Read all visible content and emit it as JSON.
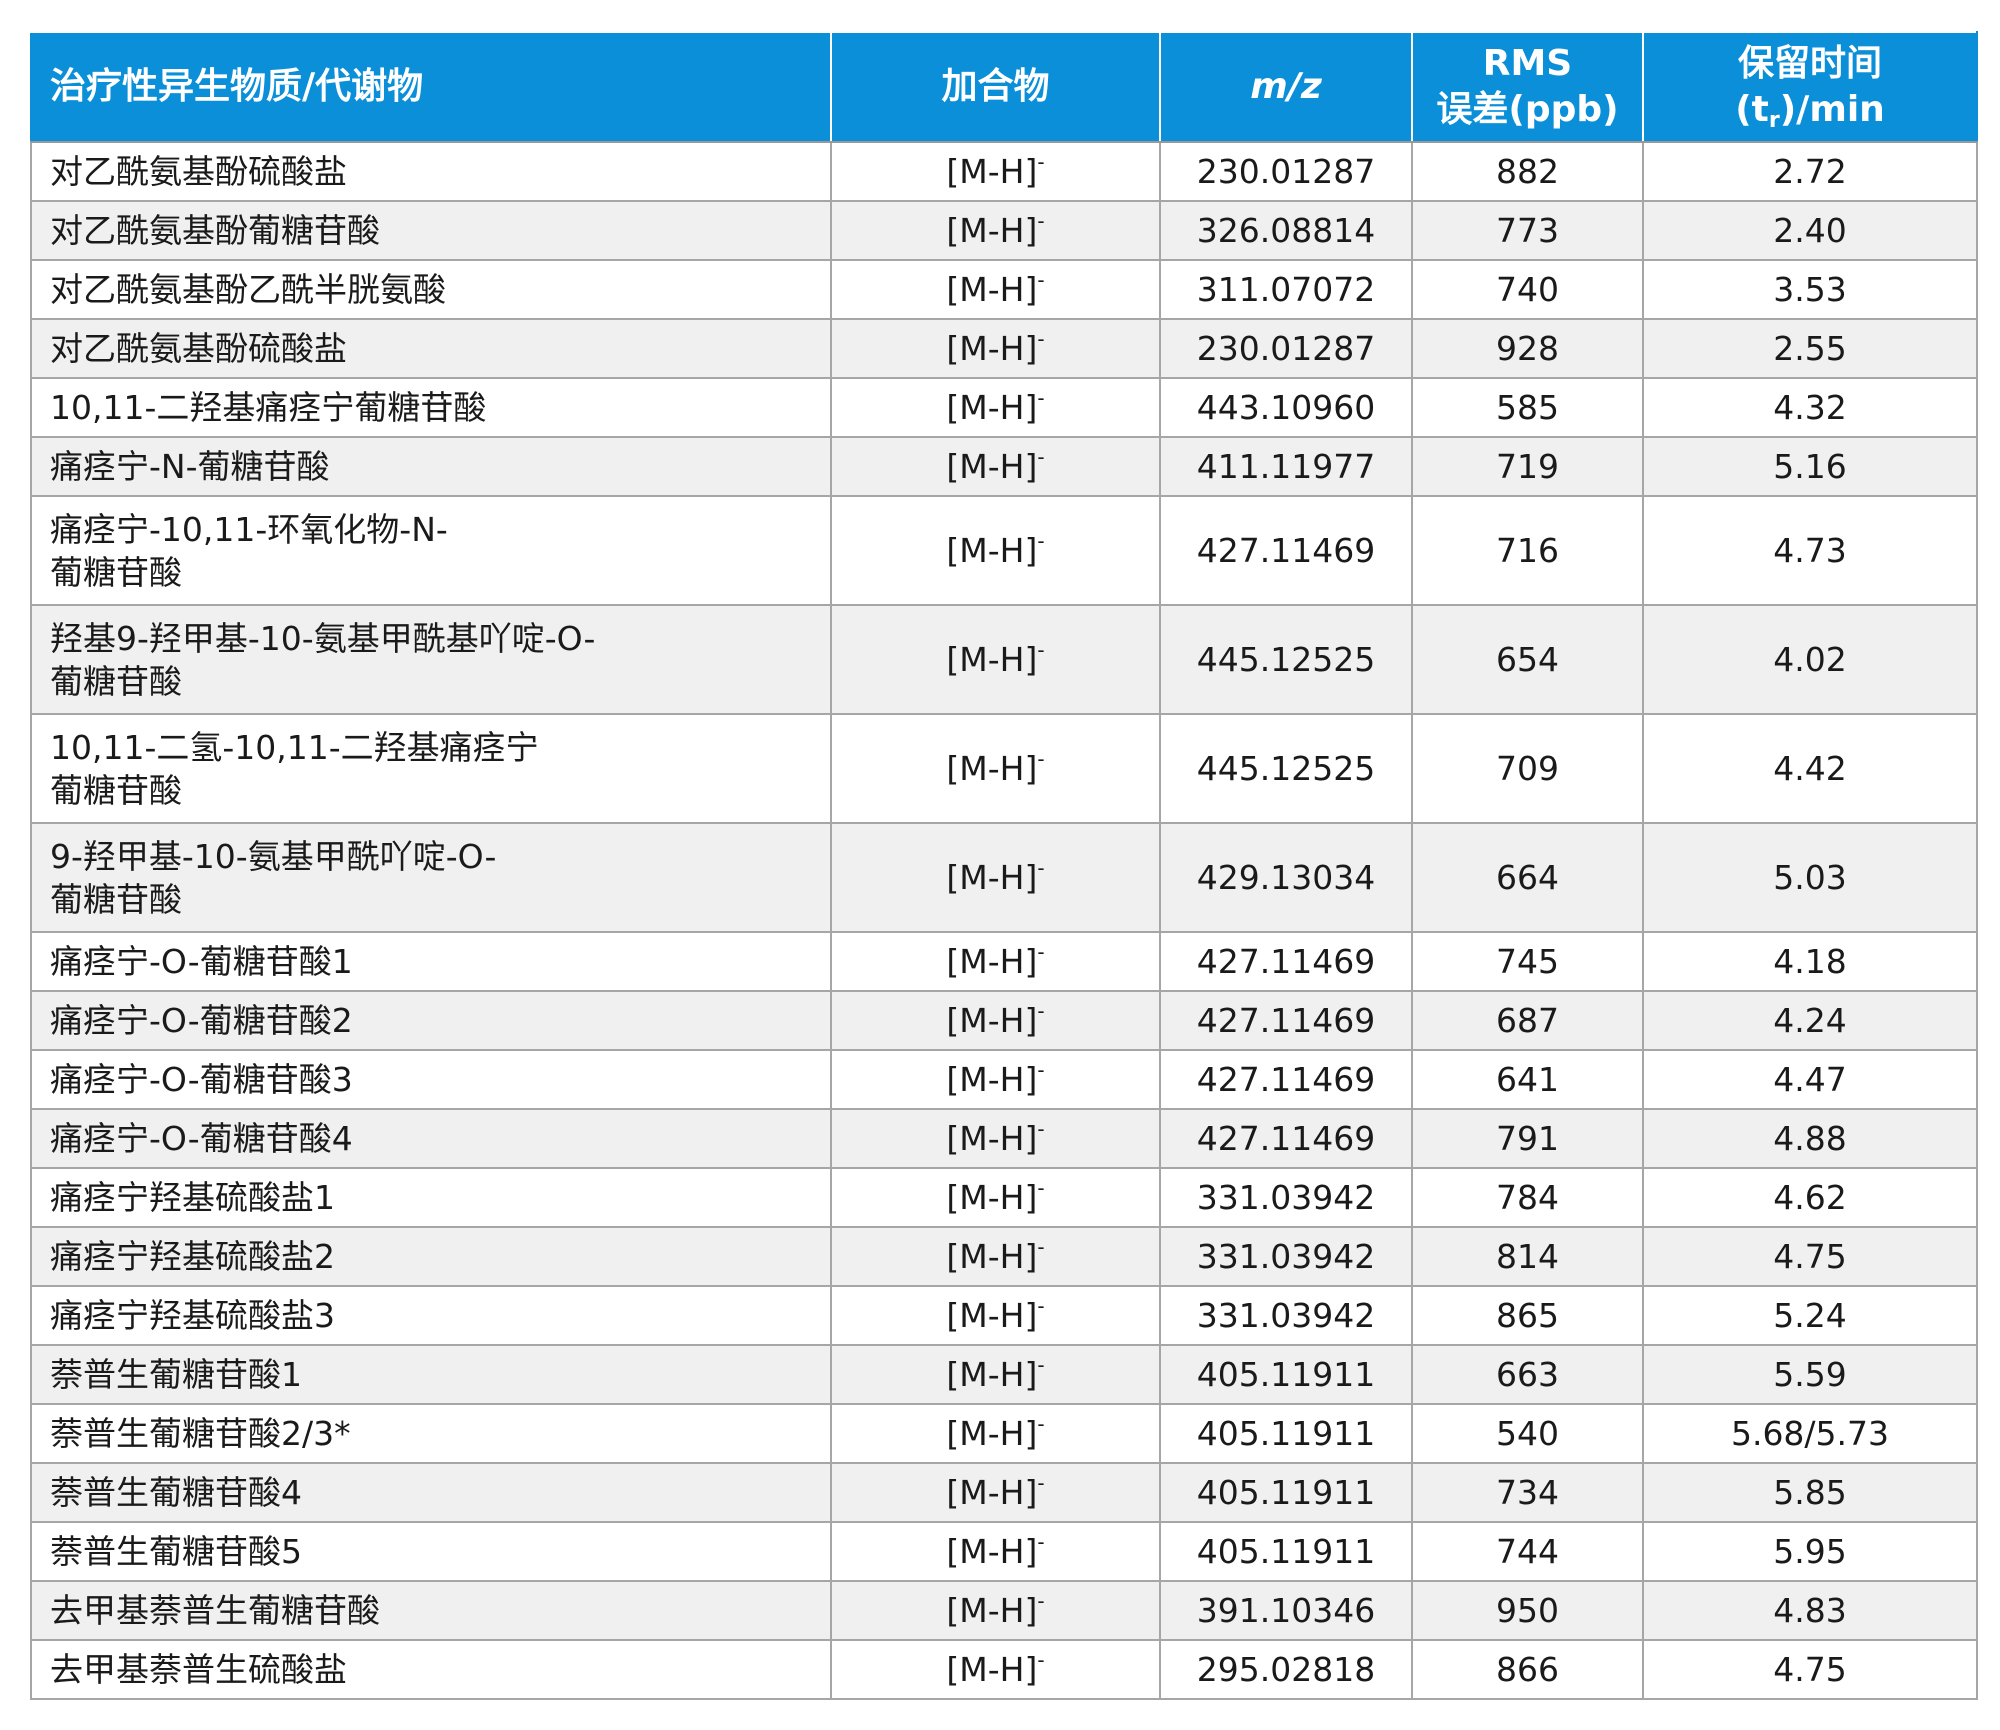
{
  "headers": {
    "compound": "治疗性异生物质/代谢物",
    "adduct": "加合物",
    "mz_m": "m",
    "mz_slash": "/",
    "mz_z": "z",
    "rms_line1": "RMS",
    "rms_line2": "误差(ppb)",
    "rt_line1": "保留时间",
    "rt_open": "(t",
    "rt_sub": "r",
    "rt_close": ")/min"
  },
  "adduct_base": "[M-H]",
  "adduct_sup": "-",
  "rows": [
    {
      "name": [
        "对乙酰氨基酚硫酸盐"
      ],
      "mz": "230.01287",
      "rms": "882",
      "rt": "2.72"
    },
    {
      "name": [
        "对乙酰氨基酚葡糖苷酸"
      ],
      "mz": "326.08814",
      "rms": "773",
      "rt": "2.40"
    },
    {
      "name": [
        "对乙酰氨基酚乙酰半胱氨酸"
      ],
      "mz": "311.07072",
      "rms": "740",
      "rt": "3.53"
    },
    {
      "name": [
        "对乙酰氨基酚硫酸盐"
      ],
      "mz": "230.01287",
      "rms": "928",
      "rt": "2.55"
    },
    {
      "name": [
        "10,11-二羟基痛痉宁葡糖苷酸"
      ],
      "mz": "443.10960",
      "rms": "585",
      "rt": "4.32"
    },
    {
      "name": [
        "痛痉宁-N-葡糖苷酸"
      ],
      "mz": "411.11977",
      "rms": "719",
      "rt": "5.16"
    },
    {
      "name": [
        "痛痉宁-10,11-环氧化物-N-",
        "葡糖苷酸"
      ],
      "mz": "427.11469",
      "rms": "716",
      "rt": "4.73"
    },
    {
      "name": [
        "羟基9-羟甲基-10-氨基甲酰基吖啶-O-",
        "葡糖苷酸"
      ],
      "mz": "445.12525",
      "rms": "654",
      "rt": "4.02"
    },
    {
      "name": [
        "10,11-二氢-10,11-二羟基痛痉宁",
        "葡糖苷酸"
      ],
      "mz": "445.12525",
      "rms": "709",
      "rt": "4.42"
    },
    {
      "name": [
        "9-羟甲基-10-氨基甲酰吖啶-O-",
        "葡糖苷酸"
      ],
      "mz": "429.13034",
      "rms": "664",
      "rt": "5.03"
    },
    {
      "name": [
        "痛痉宁-O-葡糖苷酸1"
      ],
      "mz": "427.11469",
      "rms": "745",
      "rt": "4.18"
    },
    {
      "name": [
        "痛痉宁-O-葡糖苷酸2"
      ],
      "mz": "427.11469",
      "rms": "687",
      "rt": "4.24"
    },
    {
      "name": [
        "痛痉宁-O-葡糖苷酸3"
      ],
      "mz": "427.11469",
      "rms": "641",
      "rt": "4.47"
    },
    {
      "name": [
        "痛痉宁-O-葡糖苷酸4"
      ],
      "mz": "427.11469",
      "rms": "791",
      "rt": "4.88"
    },
    {
      "name": [
        "痛痉宁羟基硫酸盐1"
      ],
      "mz": "331.03942",
      "rms": "784",
      "rt": "4.62"
    },
    {
      "name": [
        "痛痉宁羟基硫酸盐2"
      ],
      "mz": "331.03942",
      "rms": "814",
      "rt": "4.75"
    },
    {
      "name": [
        "痛痉宁羟基硫酸盐3"
      ],
      "mz": "331.03942",
      "rms": "865",
      "rt": "5.24"
    },
    {
      "name": [
        "萘普生葡糖苷酸1"
      ],
      "mz": "405.11911",
      "rms": "663",
      "rt": "5.59"
    },
    {
      "name": [
        "萘普生葡糖苷酸2/3*"
      ],
      "mz": "405.11911",
      "rms": "540",
      "rt": "5.68/5.73"
    },
    {
      "name": [
        "萘普生葡糖苷酸4"
      ],
      "mz": "405.11911",
      "rms": "734",
      "rt": "5.85"
    },
    {
      "name": [
        "萘普生葡糖苷酸5"
      ],
      "mz": "405.11911",
      "rms": "744",
      "rt": "5.95"
    },
    {
      "name": [
        "去甲基萘普生葡糖苷酸"
      ],
      "mz": "391.10346",
      "rms": "950",
      "rt": "4.83"
    },
    {
      "name": [
        "去甲基萘普生硫酸盐"
      ],
      "mz": "295.02818",
      "rms": "866",
      "rt": "4.75"
    }
  ]
}
